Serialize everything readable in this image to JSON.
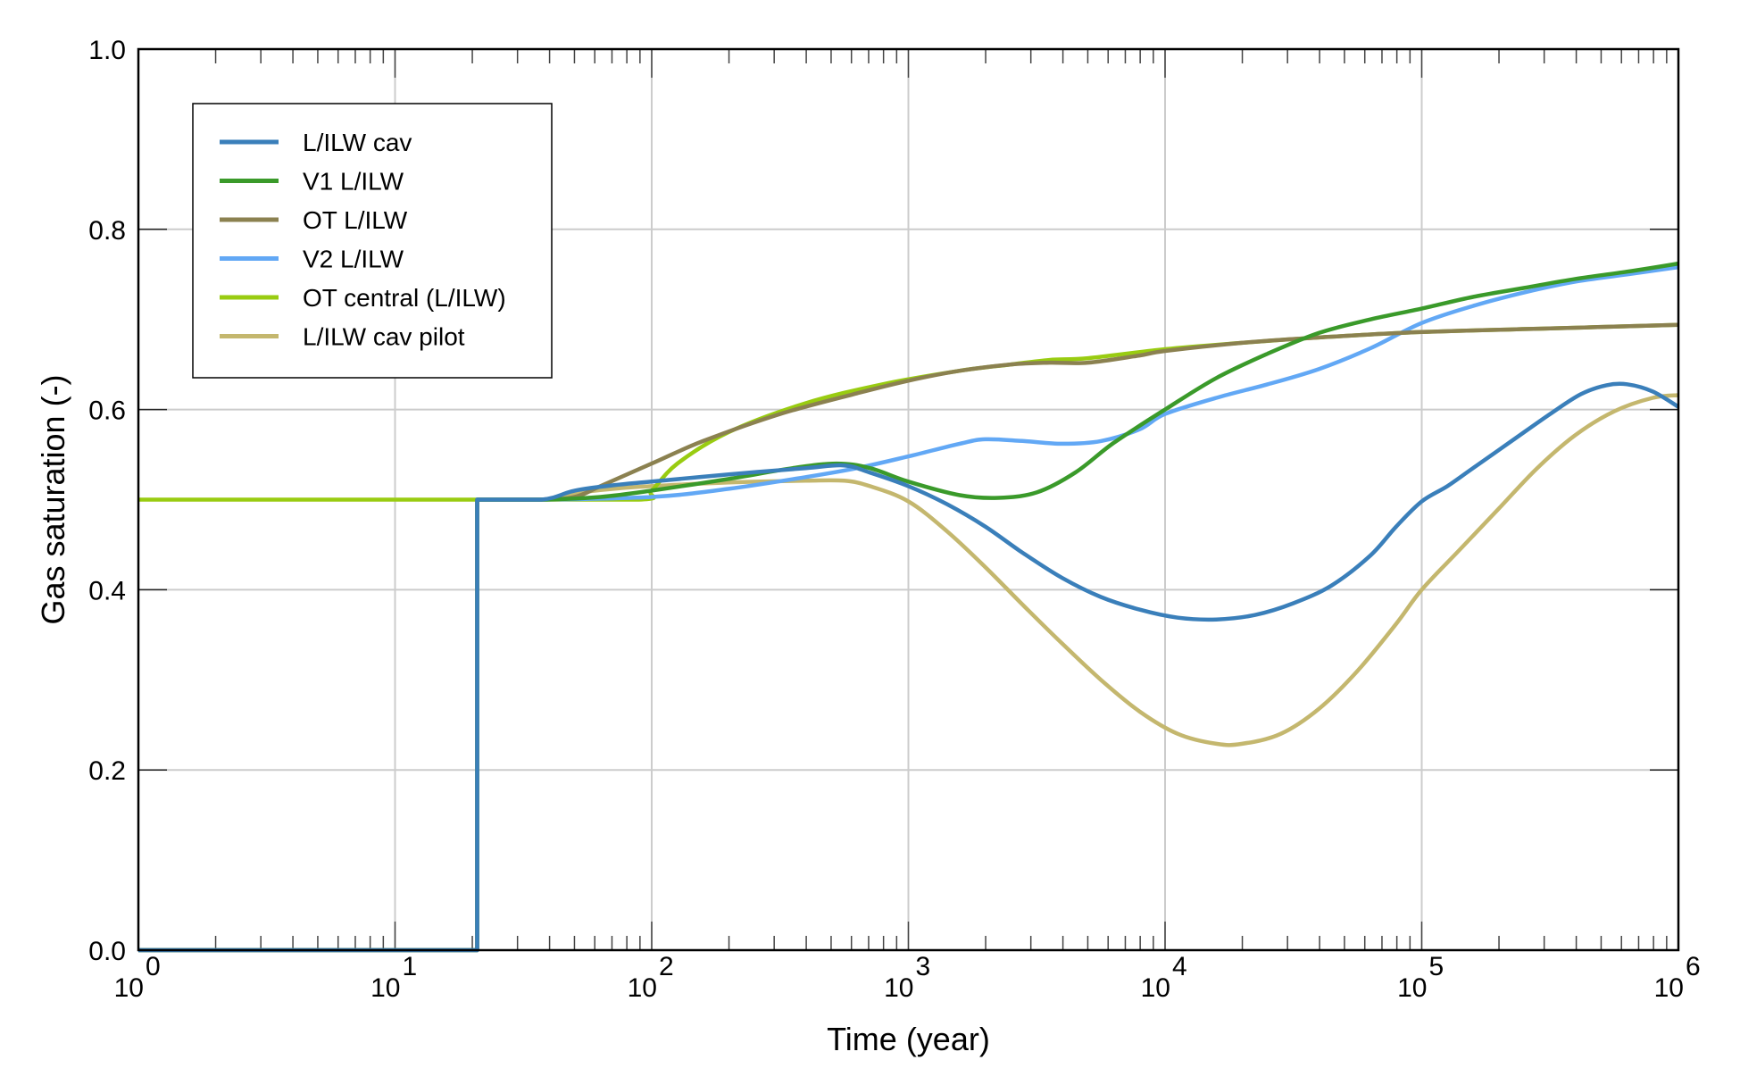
{
  "chart_data": {
    "type": "line",
    "title": "",
    "xlabel": "Time (year)",
    "ylabel": "Gas saturation (-)",
    "xscale": "log",
    "xlim": [
      1,
      1000000
    ],
    "ylim": [
      0.0,
      1.0
    ],
    "grid": true,
    "legend_position": "top-left",
    "x_ticks": [
      {
        "base": "10",
        "exp": "0",
        "value": 1
      },
      {
        "base": "10",
        "exp": "1",
        "value": 10
      },
      {
        "base": "10",
        "exp": "2",
        "value": 100
      },
      {
        "base": "10",
        "exp": "3",
        "value": 1000
      },
      {
        "base": "10",
        "exp": "4",
        "value": 10000
      },
      {
        "base": "10",
        "exp": "5",
        "value": 100000
      },
      {
        "base": "10",
        "exp": "6",
        "value": 1000000
      }
    ],
    "y_ticks": [
      "0.0",
      "0.2",
      "0.4",
      "0.6",
      "0.8",
      "1.0"
    ],
    "series": [
      {
        "name": "L/ILW cav",
        "color": "#3a7fba",
        "log10_x": [
          0,
          1.32,
          1.32,
          1.57,
          1.7,
          1.85,
          2.0,
          2.3,
          2.6,
          2.75,
          2.85,
          3.0,
          3.15,
          3.3,
          3.45,
          3.6,
          3.75,
          3.9,
          4.05,
          4.2,
          4.35,
          4.5,
          4.65,
          4.8,
          4.9,
          5.0,
          5.1,
          5.2,
          5.35,
          5.5,
          5.62,
          5.72,
          5.8,
          5.9,
          6.0
        ],
        "y": [
          0.0,
          0.0,
          0.5,
          0.5,
          0.51,
          0.516,
          0.52,
          0.528,
          0.535,
          0.538,
          0.53,
          0.515,
          0.495,
          0.47,
          0.44,
          0.413,
          0.392,
          0.378,
          0.369,
          0.367,
          0.372,
          0.385,
          0.405,
          0.438,
          0.47,
          0.498,
          0.515,
          0.535,
          0.565,
          0.595,
          0.617,
          0.627,
          0.628,
          0.62,
          0.603
        ]
      },
      {
        "name": "V1 L/ILW",
        "color": "#3a9a2a",
        "log10_x": [
          0,
          1.32,
          1.32,
          1.57,
          1.8,
          2.0,
          2.3,
          2.55,
          2.72,
          2.85,
          3.0,
          3.2,
          3.35,
          3.5,
          3.65,
          3.8,
          4.0,
          4.2,
          4.4,
          4.6,
          4.8,
          5.0,
          5.2,
          5.4,
          5.6,
          5.8,
          6.0
        ],
        "y": [
          0.0,
          0.0,
          0.5,
          0.5,
          0.503,
          0.51,
          0.523,
          0.535,
          0.54,
          0.535,
          0.52,
          0.505,
          0.502,
          0.508,
          0.53,
          0.563,
          0.6,
          0.635,
          0.662,
          0.685,
          0.7,
          0.712,
          0.725,
          0.735,
          0.745,
          0.753,
          0.762
        ]
      },
      {
        "name": "OT L/ILW",
        "color": "#8b8150",
        "log10_x": [
          0,
          1.32,
          1.32,
          1.57,
          1.7,
          1.8,
          2.0,
          2.2,
          2.5,
          2.8,
          3.0,
          3.2,
          3.4,
          3.55,
          3.7,
          3.9,
          4.0,
          4.3,
          4.6,
          5.0,
          5.5,
          6.0
        ],
        "y": [
          0.0,
          0.0,
          0.5,
          0.5,
          0.503,
          0.515,
          0.54,
          0.565,
          0.595,
          0.618,
          0.632,
          0.643,
          0.65,
          0.652,
          0.652,
          0.66,
          0.665,
          0.674,
          0.68,
          0.686,
          0.69,
          0.694
        ]
      },
      {
        "name": "V2 L/ILW",
        "color": "#62a8f5",
        "log10_x": [
          0,
          1.32,
          1.32,
          1.57,
          2.0,
          2.3,
          2.6,
          2.8,
          3.0,
          3.2,
          3.3,
          3.45,
          3.6,
          3.75,
          3.9,
          4.0,
          4.2,
          4.4,
          4.6,
          4.8,
          5.0,
          5.2,
          5.4,
          5.6,
          5.8,
          6.0
        ],
        "y": [
          0.0,
          0.0,
          0.5,
          0.5,
          0.503,
          0.512,
          0.525,
          0.535,
          0.548,
          0.562,
          0.567,
          0.565,
          0.562,
          0.565,
          0.578,
          0.595,
          0.613,
          0.628,
          0.645,
          0.668,
          0.696,
          0.715,
          0.73,
          0.742,
          0.75,
          0.758
        ]
      },
      {
        "name": "OT central (L/ILW)",
        "color": "#99cc11",
        "log10_x": [
          0,
          1.32,
          1.32,
          1.95,
          2.0,
          2.1,
          2.3,
          2.6,
          2.9,
          3.2,
          3.4,
          3.55,
          3.7,
          4.0,
          4.3,
          4.6,
          5.0,
          5.5,
          6.0
        ],
        "y": [
          0.5,
          0.5,
          0.5,
          0.5,
          0.51,
          0.54,
          0.575,
          0.607,
          0.628,
          0.643,
          0.65,
          0.655,
          0.657,
          0.667,
          0.674,
          0.68,
          0.686,
          0.69,
          0.694
        ]
      },
      {
        "name": "L/ILW cav pilot",
        "color": "#c4b76e",
        "log10_x": [
          0,
          1.32,
          1.32,
          1.57,
          1.7,
          1.85,
          2.0,
          2.3,
          2.6,
          2.75,
          2.85,
          3.0,
          3.15,
          3.3,
          3.45,
          3.6,
          3.75,
          3.9,
          4.05,
          4.2,
          4.3,
          4.45,
          4.6,
          4.75,
          4.9,
          5.0,
          5.15,
          5.3,
          5.45,
          5.6,
          5.75,
          5.9,
          6.0
        ],
        "y": [
          0.0,
          0.0,
          0.5,
          0.5,
          0.507,
          0.512,
          0.515,
          0.519,
          0.521,
          0.521,
          0.515,
          0.498,
          0.465,
          0.425,
          0.382,
          0.34,
          0.3,
          0.265,
          0.24,
          0.229,
          0.229,
          0.24,
          0.268,
          0.31,
          0.362,
          0.4,
          0.445,
          0.49,
          0.535,
          0.572,
          0.598,
          0.613,
          0.616
        ]
      }
    ]
  }
}
